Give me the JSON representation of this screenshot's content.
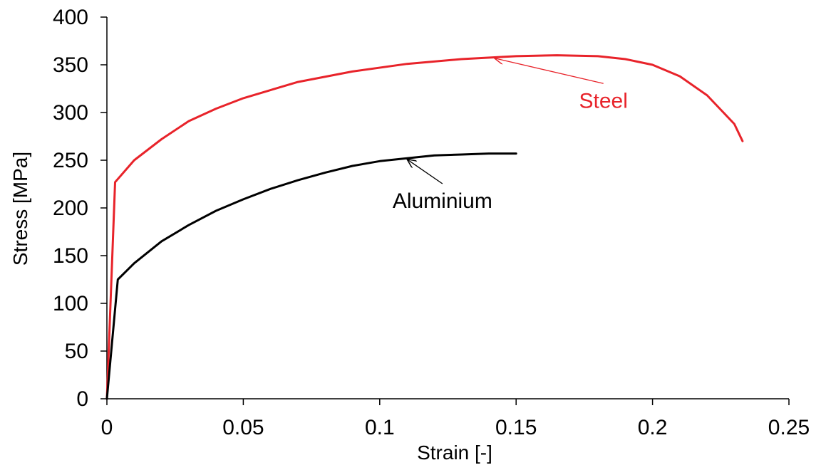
{
  "chart_data": {
    "type": "line",
    "title": "",
    "xlabel": "Strain [-]",
    "ylabel": "Stress [MPa]",
    "xlim": [
      0,
      0.25
    ],
    "ylim": [
      0,
      400
    ],
    "xticks": [
      0,
      0.05,
      0.1,
      0.15,
      0.2,
      0.25
    ],
    "xtick_labels": [
      "0",
      "0.05",
      "0.1",
      "0.15",
      "0.2",
      "0.25"
    ],
    "yticks": [
      0,
      50,
      100,
      150,
      200,
      250,
      300,
      350,
      400
    ],
    "ytick_labels": [
      "0",
      "50",
      "100",
      "150",
      "200",
      "250",
      "300",
      "350",
      "400"
    ],
    "grid": false,
    "legend": "none",
    "series": [
      {
        "name": "Steel",
        "color": "#e8232a",
        "x": [
          0,
          0.003,
          0.01,
          0.02,
          0.03,
          0.04,
          0.05,
          0.07,
          0.09,
          0.11,
          0.13,
          0.15,
          0.165,
          0.18,
          0.19,
          0.2,
          0.21,
          0.22,
          0.23,
          0.233
        ],
        "y": [
          0,
          227,
          250,
          272,
          291,
          304,
          315,
          332,
          343,
          351,
          356,
          359,
          360,
          359,
          356,
          350,
          338,
          318,
          288,
          270
        ]
      },
      {
        "name": "Aluminium",
        "color": "#000000",
        "x": [
          0,
          0.004,
          0.01,
          0.02,
          0.03,
          0.04,
          0.05,
          0.06,
          0.07,
          0.08,
          0.09,
          0.1,
          0.11,
          0.12,
          0.13,
          0.14,
          0.15
        ],
        "y": [
          0,
          125,
          142,
          165,
          182,
          197,
          209,
          220,
          229,
          237,
          244,
          249,
          252,
          255,
          256,
          257,
          257
        ]
      }
    ],
    "annotations": [
      {
        "text": "Steel",
        "series": "Steel",
        "color": "#e8232a",
        "label_at": [
          0.182,
          305
        ],
        "arrow_to": [
          0.142,
          357
        ]
      },
      {
        "text": "Aluminium",
        "series": "Aluminium",
        "color": "#000000",
        "label_at": [
          0.123,
          200
        ],
        "arrow_to": [
          0.11,
          251
        ]
      }
    ]
  }
}
